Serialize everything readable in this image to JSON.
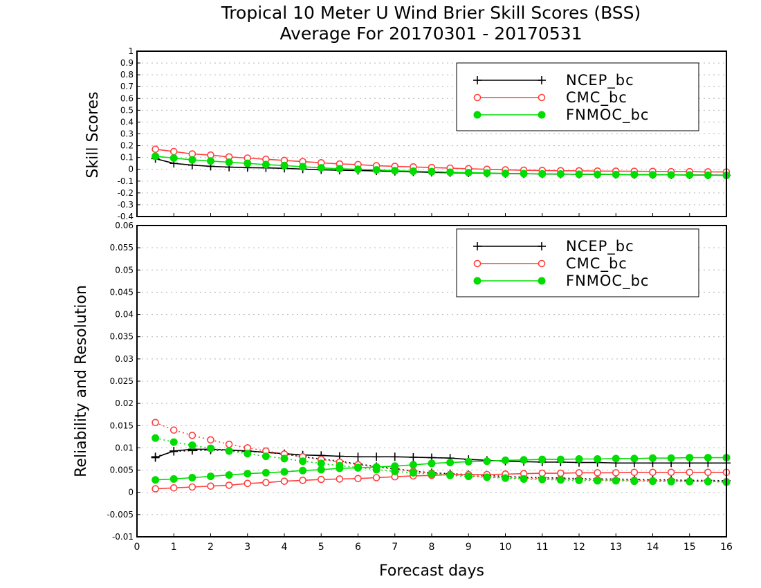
{
  "chart_data": [
    {
      "type": "line",
      "panel": "top",
      "title": "Tropical 10 Meter U Wind Brier Skill Scores (BSS)",
      "subtitle": "Average For 20170301 - 20170531",
      "ylabel": "Skill Scores",
      "xlim": [
        0,
        16
      ],
      "ylim": [
        -0.4,
        1
      ],
      "yticks": [
        "-0.4",
        "-0.3",
        "-0.2",
        "-0.1",
        "0",
        "0.1",
        "0.2",
        "0.3",
        "0.4",
        "0.5",
        "0.6",
        "0.7",
        "0.8",
        "0.9",
        "1"
      ],
      "grid": true,
      "legend_position": "top-right",
      "x": [
        0.5,
        1,
        1.5,
        2,
        2.5,
        3,
        3.5,
        4,
        4.5,
        5,
        5.5,
        6,
        6.5,
        7,
        7.5,
        8,
        8.5,
        9,
        9.5,
        10,
        10.5,
        11,
        11.5,
        12,
        12.5,
        13,
        13.5,
        14,
        14.5,
        15,
        15.5,
        16
      ],
      "series": [
        {
          "name": "NCEP_bc",
          "color": "#000000",
          "marker": "plus",
          "style": "solid",
          "values": [
            0.09,
            0.05,
            0.035,
            0.025,
            0.018,
            0.014,
            0.012,
            0.008,
            0.002,
            -0.004,
            -0.008,
            -0.01,
            -0.014,
            -0.018,
            -0.022,
            -0.026,
            -0.029,
            -0.031,
            -0.033,
            -0.036,
            -0.038,
            -0.04,
            -0.041,
            -0.042,
            -0.043,
            -0.044,
            -0.045,
            -0.046,
            -0.047,
            -0.048,
            -0.049,
            -0.05
          ]
        },
        {
          "name": "CMC_bc",
          "color": "#ff4040",
          "marker": "open-circle",
          "style": "solid",
          "values": [
            0.17,
            0.15,
            0.13,
            0.12,
            0.105,
            0.095,
            0.085,
            0.075,
            0.065,
            0.055,
            0.045,
            0.04,
            0.03,
            0.025,
            0.02,
            0.015,
            0.01,
            0.005,
            0.0,
            -0.005,
            -0.008,
            -0.01,
            -0.012,
            -0.013,
            -0.015,
            -0.016,
            -0.017,
            -0.018,
            -0.02,
            -0.02,
            -0.022,
            -0.023
          ]
        },
        {
          "name": "FNMOC_bc",
          "color": "#00dd00",
          "marker": "filled-circle",
          "style": "solid",
          "values": [
            0.11,
            0.095,
            0.08,
            0.07,
            0.06,
            0.05,
            0.04,
            0.032,
            0.022,
            0.012,
            0.005,
            0.0,
            -0.005,
            -0.012,
            -0.016,
            -0.02,
            -0.025,
            -0.028,
            -0.032,
            -0.035,
            -0.037,
            -0.039,
            -0.04,
            -0.042,
            -0.043,
            -0.044,
            -0.045,
            -0.046,
            -0.047,
            -0.048,
            -0.05,
            -0.052
          ]
        }
      ]
    },
    {
      "type": "line",
      "panel": "bottom",
      "ylabel": "Reliability and Resolution",
      "xlabel": "Forecast days",
      "xlim": [
        0,
        16
      ],
      "ylim": [
        -0.01,
        0.06
      ],
      "yticks": [
        "-0.01",
        "-0.005",
        "0",
        "0.005",
        "0.01",
        "0.015",
        "0.02",
        "0.025",
        "0.03",
        "0.035",
        "0.04",
        "0.045",
        "0.05",
        "0.055",
        "0.06"
      ],
      "xticks": [
        "0",
        "1",
        "2",
        "3",
        "4",
        "5",
        "6",
        "7",
        "8",
        "9",
        "10",
        "11",
        "12",
        "13",
        "14",
        "15",
        "16"
      ],
      "grid": true,
      "legend_position": "top-right",
      "x": [
        0.5,
        1,
        1.5,
        2,
        2.5,
        3,
        3.5,
        4,
        4.5,
        5,
        5.5,
        6,
        6.5,
        7,
        7.5,
        8,
        8.5,
        9,
        9.5,
        10,
        10.5,
        11,
        11.5,
        12,
        12.5,
        13,
        13.5,
        14,
        14.5,
        15,
        15.5,
        16
      ],
      "series": [
        {
          "name": "NCEP_bc",
          "metric": "reliability",
          "color": "#000000",
          "marker": "plus",
          "style": "dotted",
          "values": [
            0.008,
            0.0092,
            0.0094,
            0.0095,
            0.0094,
            0.0092,
            0.009,
            0.0086,
            0.008,
            0.0075,
            0.007,
            0.0064,
            0.0058,
            0.0053,
            0.0048,
            0.0044,
            0.0042,
            0.004,
            0.0038,
            0.0036,
            0.0034,
            0.0033,
            0.0032,
            0.0031,
            0.003,
            0.003,
            0.0029,
            0.0028,
            0.0028,
            0.0027,
            0.0027,
            0.0026
          ]
        },
        {
          "name": "NCEP_bc",
          "metric": "resolution",
          "color": "#000000",
          "marker": "plus",
          "style": "solid",
          "values": [
            0.0078,
            0.0093,
            0.0097,
            0.0097,
            0.0095,
            0.0093,
            0.009,
            0.0087,
            0.0084,
            0.0083,
            0.0081,
            0.008,
            0.008,
            0.008,
            0.0079,
            0.0078,
            0.0077,
            0.0074,
            0.0072,
            0.007,
            0.0069,
            0.0068,
            0.0068,
            0.0067,
            0.0067,
            0.0066,
            0.0066,
            0.0066,
            0.0066,
            0.0066,
            0.0066,
            0.0066
          ]
        },
        {
          "name": "CMC_bc",
          "metric": "reliability",
          "color": "#ff4040",
          "marker": "open-circle",
          "style": "dotted",
          "values": [
            0.0157,
            0.014,
            0.0128,
            0.0118,
            0.0108,
            0.01,
            0.0093,
            0.0086,
            0.008,
            0.0074,
            0.0068,
            0.0062,
            0.0057,
            0.0052,
            0.0047,
            0.0043,
            0.004,
            0.0037,
            0.0035,
            0.0033,
            0.0032,
            0.003,
            0.003,
            0.0029,
            0.0028,
            0.0027,
            0.0027,
            0.0026,
            0.0026,
            0.0025,
            0.0025,
            0.0024
          ]
        },
        {
          "name": "CMC_bc",
          "metric": "resolution",
          "color": "#ff4040",
          "marker": "open-circle",
          "style": "solid",
          "values": [
            0.0008,
            0.001,
            0.0012,
            0.0014,
            0.0016,
            0.002,
            0.0022,
            0.0025,
            0.0027,
            0.0029,
            0.003,
            0.0031,
            0.0033,
            0.0035,
            0.0037,
            0.0038,
            0.004,
            0.004,
            0.004,
            0.0041,
            0.0042,
            0.0043,
            0.0043,
            0.0044,
            0.0044,
            0.0044,
            0.0045,
            0.0045,
            0.0045,
            0.0045,
            0.0045,
            0.0045
          ]
        },
        {
          "name": "FNMOC_bc",
          "metric": "reliability",
          "color": "#00dd00",
          "marker": "filled-circle",
          "style": "dotted",
          "values": [
            0.0122,
            0.0113,
            0.0106,
            0.0099,
            0.0093,
            0.0087,
            0.0081,
            0.0076,
            0.007,
            0.0065,
            0.006,
            0.0056,
            0.0051,
            0.0047,
            0.0044,
            0.0041,
            0.0038,
            0.0036,
            0.0034,
            0.0032,
            0.003,
            0.0029,
            0.0028,
            0.0027,
            0.0026,
            0.0026,
            0.0025,
            0.0025,
            0.0024,
            0.0024,
            0.0024,
            0.0023
          ]
        },
        {
          "name": "FNMOC_bc",
          "metric": "resolution",
          "color": "#00dd00",
          "marker": "filled-circle",
          "style": "solid",
          "values": [
            0.0028,
            0.003,
            0.0033,
            0.0036,
            0.0039,
            0.0042,
            0.0044,
            0.0046,
            0.0049,
            0.0051,
            0.0054,
            0.0055,
            0.0057,
            0.0059,
            0.0062,
            0.0065,
            0.0067,
            0.0069,
            0.007,
            0.0072,
            0.0073,
            0.0074,
            0.0074,
            0.0075,
            0.0075,
            0.0076,
            0.0076,
            0.0077,
            0.0077,
            0.0078,
            0.0078,
            0.0078
          ]
        }
      ]
    }
  ],
  "legend": {
    "items": [
      {
        "label": "NCEP_bc",
        "color": "#000000",
        "marker": "plus"
      },
      {
        "label": "CMC_bc",
        "color": "#ff4040",
        "marker": "open-circle"
      },
      {
        "label": "FNMOC_bc",
        "color": "#00dd00",
        "marker": "filled-circle"
      }
    ]
  }
}
